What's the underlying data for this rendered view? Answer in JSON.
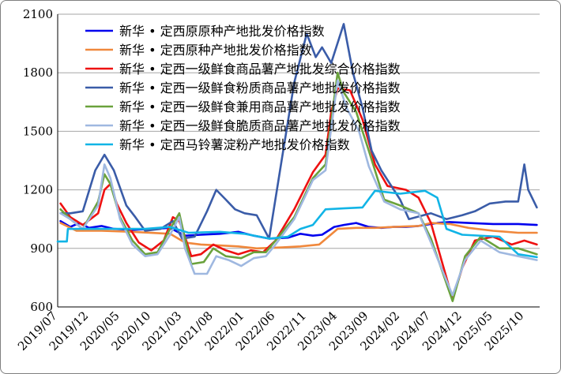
{
  "chart_data": {
    "type": "line",
    "title": "",
    "xlabel": "",
    "ylabel": "",
    "ylim": [
      600,
      2100
    ],
    "yticks": [
      "600",
      "900",
      "1200",
      "1500",
      "1800",
      "2100"
    ],
    "xlim": [
      "2019-07-01",
      "2025-12-15"
    ],
    "xticks": [
      "2019/07",
      "2019/12",
      "2020/05",
      "2020/10",
      "2021/03",
      "2021/08",
      "2022/01",
      "2022/06",
      "2022/11",
      "2023/04",
      "2023/09",
      "2024/02",
      "2024/07",
      "2024/12",
      "2025/05",
      "2025/10"
    ],
    "grid": "horizontal",
    "legend_position": "top-left",
    "series": [
      {
        "name": "新华 • 定西原原种产地批发价格指数",
        "color": "#0000ee",
        "points": [
          [
            "2019-07-15",
            1040
          ],
          [
            "2019-09-01",
            1010
          ],
          [
            "2019-10-15",
            1030
          ],
          [
            "2019-12-01",
            1005
          ],
          [
            "2020-02-01",
            1015
          ],
          [
            "2020-04-01",
            1000
          ],
          [
            "2020-07-01",
            995
          ],
          [
            "2020-10-01",
            1000
          ],
          [
            "2021-01-01",
            1005
          ],
          [
            "2021-03-15",
            965
          ],
          [
            "2021-06-01",
            970
          ],
          [
            "2021-09-01",
            975
          ],
          [
            "2021-12-01",
            985
          ],
          [
            "2022-02-15",
            965
          ],
          [
            "2022-05-01",
            950
          ],
          [
            "2022-08-01",
            955
          ],
          [
            "2022-10-01",
            975
          ],
          [
            "2022-12-01",
            965
          ],
          [
            "2023-01-15",
            970
          ],
          [
            "2023-03-15",
            1010
          ],
          [
            "2023-05-01",
            1020
          ],
          [
            "2023-07-01",
            1030
          ],
          [
            "2023-09-01",
            1010
          ],
          [
            "2023-11-01",
            1005
          ],
          [
            "2024-01-01",
            1010
          ],
          [
            "2024-03-01",
            1010
          ],
          [
            "2024-05-01",
            1015
          ],
          [
            "2024-08-01",
            1030
          ],
          [
            "2024-10-01",
            1035
          ],
          [
            "2025-01-01",
            1030
          ],
          [
            "2025-05-01",
            1025
          ],
          [
            "2025-09-01",
            1025
          ],
          [
            "2025-12-01",
            1020
          ]
        ]
      },
      {
        "name": "新华 • 定西原种产地批发价格指数",
        "color": "#f0883c",
        "points": [
          [
            "2019-07-15",
            1030
          ],
          [
            "2019-10-01",
            990
          ],
          [
            "2020-02-01",
            990
          ],
          [
            "2020-07-01",
            985
          ],
          [
            "2021-01-01",
            975
          ],
          [
            "2021-03-15",
            930
          ],
          [
            "2021-06-01",
            920
          ],
          [
            "2021-09-01",
            915
          ],
          [
            "2021-12-01",
            910
          ],
          [
            "2022-03-01",
            900
          ],
          [
            "2022-07-01",
            905
          ],
          [
            "2022-10-01",
            910
          ],
          [
            "2023-01-01",
            920
          ],
          [
            "2023-04-01",
            1000
          ],
          [
            "2023-07-01",
            1005
          ],
          [
            "2023-10-01",
            1005
          ],
          [
            "2024-01-01",
            1010
          ],
          [
            "2024-05-01",
            1015
          ],
          [
            "2024-07-01",
            1030
          ],
          [
            "2024-10-01",
            1025
          ],
          [
            "2025-01-01",
            1005
          ],
          [
            "2025-05-01",
            990
          ],
          [
            "2025-09-01",
            980
          ],
          [
            "2025-12-01",
            980
          ]
        ]
      },
      {
        "name": "新华 • 定西一级鲜食商品薯产地批发综合价格指数",
        "color": "#ee1111",
        "points": [
          [
            "2019-07-15",
            1130
          ],
          [
            "2019-09-01",
            1060
          ],
          [
            "2019-11-01",
            1020
          ],
          [
            "2020-01-15",
            1080
          ],
          [
            "2020-02-15",
            1200
          ],
          [
            "2020-03-15",
            1230
          ],
          [
            "2020-04-15",
            1130
          ],
          [
            "2020-06-01",
            1030
          ],
          [
            "2020-08-01",
            930
          ],
          [
            "2020-10-01",
            890
          ],
          [
            "2020-12-01",
            940
          ],
          [
            "2021-01-15",
            1060
          ],
          [
            "2021-02-15",
            1040
          ],
          [
            "2021-03-15",
            960
          ],
          [
            "2021-04-15",
            860
          ],
          [
            "2021-06-01",
            870
          ],
          [
            "2021-08-01",
            920
          ],
          [
            "2021-10-01",
            890
          ],
          [
            "2021-12-01",
            870
          ],
          [
            "2022-02-01",
            890
          ],
          [
            "2022-04-01",
            880
          ],
          [
            "2022-06-01",
            940
          ],
          [
            "2022-09-01",
            1100
          ],
          [
            "2022-12-01",
            1290
          ],
          [
            "2023-02-01",
            1380
          ],
          [
            "2023-03-01",
            1600
          ],
          [
            "2023-04-01",
            1720
          ],
          [
            "2023-06-01",
            1710
          ],
          [
            "2023-08-01",
            1560
          ],
          [
            "2023-10-01",
            1330
          ],
          [
            "2023-12-01",
            1220
          ],
          [
            "2024-03-01",
            1200
          ],
          [
            "2024-05-01",
            1160
          ],
          [
            "2024-07-01",
            1030
          ],
          [
            "2024-09-01",
            800
          ],
          [
            "2024-10-15",
            640
          ],
          [
            "2024-12-01",
            800
          ],
          [
            "2025-02-01",
            940
          ],
          [
            "2025-05-01",
            960
          ],
          [
            "2025-08-01",
            920
          ],
          [
            "2025-10-01",
            940
          ],
          [
            "2025-12-01",
            920
          ]
        ]
      },
      {
        "name": "新华 • 定西一级鲜食粉质商品薯产地批发价格指数",
        "color": "#3a5ca8",
        "points": [
          [
            "2019-07-15",
            1080
          ],
          [
            "2019-09-01",
            1080
          ],
          [
            "2019-11-01",
            1090
          ],
          [
            "2020-01-01",
            1300
          ],
          [
            "2020-02-15",
            1380
          ],
          [
            "2020-04-01",
            1300
          ],
          [
            "2020-06-01",
            1120
          ],
          [
            "2020-07-15",
            1060
          ],
          [
            "2020-09-01",
            990
          ],
          [
            "2020-11-15",
            1000
          ],
          [
            "2021-01-15",
            1040
          ],
          [
            "2021-03-01",
            950
          ],
          [
            "2021-05-01",
            960
          ],
          [
            "2021-07-01",
            1090
          ],
          [
            "2021-08-15",
            1200
          ],
          [
            "2021-10-01",
            1150
          ],
          [
            "2021-11-15",
            1100
          ],
          [
            "2022-01-01",
            1080
          ],
          [
            "2022-03-01",
            1070
          ],
          [
            "2022-05-01",
            950
          ],
          [
            "2022-07-01",
            1350
          ],
          [
            "2022-09-01",
            1750
          ],
          [
            "2022-11-01",
            2000
          ],
          [
            "2022-12-15",
            1880
          ],
          [
            "2023-01-15",
            1930
          ],
          [
            "2023-03-01",
            1850
          ],
          [
            "2023-05-01",
            2050
          ],
          [
            "2023-06-15",
            1800
          ],
          [
            "2023-08-01",
            1620
          ],
          [
            "2023-09-15",
            1400
          ],
          [
            "2023-11-01",
            1300
          ],
          [
            "2024-02-01",
            1150
          ],
          [
            "2024-03-15",
            1050
          ],
          [
            "2024-07-01",
            1080
          ],
          [
            "2024-09-15",
            1050
          ],
          [
            "2024-12-01",
            1070
          ],
          [
            "2025-02-01",
            1090
          ],
          [
            "2025-04-15",
            1130
          ],
          [
            "2025-07-01",
            1140
          ],
          [
            "2025-09-01",
            1140
          ],
          [
            "2025-10-01",
            1330
          ],
          [
            "2025-10-20",
            1200
          ],
          [
            "2025-12-01",
            1110
          ]
        ]
      },
      {
        "name": "新华 • 定西一级鲜食兼用商品薯产地批发价格指数",
        "color": "#6aa23c",
        "points": [
          [
            "2019-07-15",
            1100
          ],
          [
            "2019-09-01",
            1050
          ],
          [
            "2019-11-01",
            1000
          ],
          [
            "2020-01-15",
            1140
          ],
          [
            "2020-02-15",
            1280
          ],
          [
            "2020-03-15",
            1230
          ],
          [
            "2020-05-01",
            1060
          ],
          [
            "2020-07-01",
            940
          ],
          [
            "2020-09-01",
            870
          ],
          [
            "2020-11-01",
            880
          ],
          [
            "2021-01-01",
            1000
          ],
          [
            "2021-02-15",
            1080
          ],
          [
            "2021-03-15",
            950
          ],
          [
            "2021-04-15",
            820
          ],
          [
            "2021-06-15",
            830
          ],
          [
            "2021-08-01",
            900
          ],
          [
            "2021-10-01",
            860
          ],
          [
            "2021-12-15",
            850
          ],
          [
            "2022-02-15",
            880
          ],
          [
            "2022-04-15",
            880
          ],
          [
            "2022-06-01",
            940
          ],
          [
            "2022-09-01",
            1060
          ],
          [
            "2022-12-01",
            1260
          ],
          [
            "2023-02-01",
            1330
          ],
          [
            "2023-04-01",
            1800
          ],
          [
            "2023-05-01",
            1700
          ],
          [
            "2023-07-01",
            1600
          ],
          [
            "2023-09-01",
            1400
          ],
          [
            "2023-11-15",
            1150
          ],
          [
            "2024-02-01",
            1120
          ],
          [
            "2024-05-01",
            1080
          ],
          [
            "2024-07-01",
            950
          ],
          [
            "2024-10-15",
            630
          ],
          [
            "2024-12-15",
            860
          ],
          [
            "2025-03-01",
            960
          ],
          [
            "2025-06-01",
            900
          ],
          [
            "2025-09-01",
            900
          ],
          [
            "2025-12-01",
            870
          ]
        ]
      },
      {
        "name": "新华 • 定西一级鲜食脆质商品薯产地批发价格指数",
        "color": "#9fb8e0",
        "points": [
          [
            "2019-07-15",
            1080
          ],
          [
            "2019-09-01",
            1050
          ],
          [
            "2019-11-01",
            1000
          ],
          [
            "2020-01-15",
            1120
          ],
          [
            "2020-02-15",
            1330
          ],
          [
            "2020-03-15",
            1260
          ],
          [
            "2020-05-01",
            1050
          ],
          [
            "2020-07-01",
            920
          ],
          [
            "2020-09-01",
            860
          ],
          [
            "2020-11-01",
            870
          ],
          [
            "2021-01-01",
            970
          ],
          [
            "2021-02-15",
            1060
          ],
          [
            "2021-03-15",
            900
          ],
          [
            "2021-05-01",
            770
          ],
          [
            "2021-07-01",
            770
          ],
          [
            "2021-08-15",
            860
          ],
          [
            "2021-10-15",
            840
          ],
          [
            "2021-12-15",
            810
          ],
          [
            "2022-02-15",
            850
          ],
          [
            "2022-04-15",
            860
          ],
          [
            "2022-06-01",
            920
          ],
          [
            "2022-09-01",
            1050
          ],
          [
            "2022-12-01",
            1250
          ],
          [
            "2023-02-01",
            1300
          ],
          [
            "2023-04-01",
            1760
          ],
          [
            "2023-05-15",
            1620
          ],
          [
            "2023-07-15",
            1500
          ],
          [
            "2023-09-01",
            1320
          ],
          [
            "2023-11-15",
            1140
          ],
          [
            "2024-02-01",
            1100
          ],
          [
            "2024-05-01",
            1080
          ],
          [
            "2024-07-01",
            930
          ],
          [
            "2024-10-15",
            660
          ],
          [
            "2024-12-15",
            840
          ],
          [
            "2025-03-01",
            940
          ],
          [
            "2025-06-01",
            880
          ],
          [
            "2025-09-01",
            860
          ],
          [
            "2025-12-01",
            840
          ]
        ]
      },
      {
        "name": "新华 • 定西马铃薯淀粉产地批发价格指数",
        "color": "#11b4e6",
        "points": [
          [
            "2019-07-01",
            935
          ],
          [
            "2019-08-15",
            935
          ],
          [
            "2019-08-20",
            1000
          ],
          [
            "2020-03-01",
            1000
          ],
          [
            "2020-09-01",
            1000
          ],
          [
            "2021-01-01",
            1010
          ],
          [
            "2021-04-01",
            980
          ],
          [
            "2021-09-01",
            985
          ],
          [
            "2022-01-01",
            975
          ],
          [
            "2022-05-01",
            950
          ],
          [
            "2022-08-01",
            960
          ],
          [
            "2022-10-01",
            1000
          ],
          [
            "2022-12-01",
            1020
          ],
          [
            "2023-02-01",
            1100
          ],
          [
            "2023-05-01",
            1105
          ],
          [
            "2023-08-01",
            1110
          ],
          [
            "2023-10-01",
            1195
          ],
          [
            "2024-02-01",
            1180
          ],
          [
            "2024-06-01",
            1195
          ],
          [
            "2024-08-01",
            1160
          ],
          [
            "2024-09-15",
            1000
          ],
          [
            "2024-12-01",
            970
          ],
          [
            "2025-06-01",
            960
          ],
          [
            "2025-09-01",
            870
          ],
          [
            "2025-12-01",
            855
          ]
        ]
      }
    ]
  }
}
